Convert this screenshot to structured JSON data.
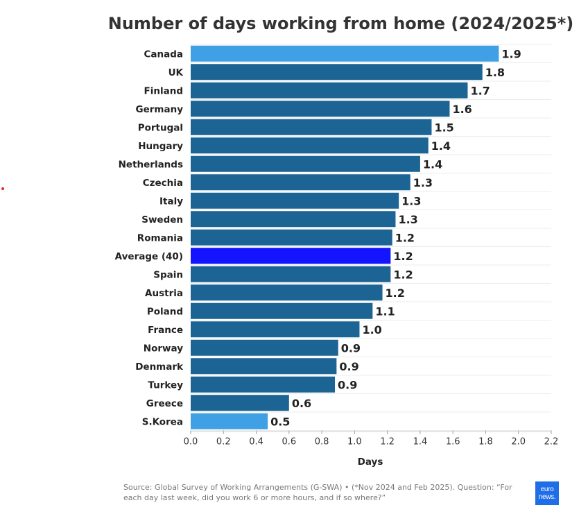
{
  "chart_data": {
    "type": "bar",
    "orientation": "horizontal",
    "title": "Number of days working from home (2024/2025*)",
    "xlabel": "Days",
    "ylabel": "",
    "xlim": [
      0,
      2.2
    ],
    "x_ticks": [
      "0.0",
      "0.2",
      "0.4",
      "0.6",
      "0.8",
      "1.0",
      "1.2",
      "1.4",
      "1.6",
      "1.8",
      "2.0",
      "2.2"
    ],
    "grid": true,
    "legend": "none",
    "categories": [
      "Canada",
      "UK",
      "Finland",
      "Germany",
      "Portugal",
      "Hungary",
      "Netherlands",
      "Czechia",
      "Italy",
      "Sweden",
      "Romania",
      "Average (40)",
      "Spain",
      "Austria",
      "Poland",
      "France",
      "Norway",
      "Denmark",
      "Turkey",
      "Greece",
      "S.Korea"
    ],
    "values": [
      1.88,
      1.78,
      1.69,
      1.58,
      1.47,
      1.45,
      1.4,
      1.34,
      1.27,
      1.25,
      1.23,
      1.22,
      1.22,
      1.17,
      1.11,
      1.03,
      0.9,
      0.89,
      0.88,
      0.6,
      0.47
    ],
    "value_labels": [
      "1.9",
      "1.8",
      "1.7",
      "1.6",
      "1.5",
      "1.4",
      "1.4",
      "1.3",
      "1.3",
      "1.3",
      "1.2",
      "1.2",
      "1.2",
      "1.2",
      "1.1",
      "1.0",
      "0.9",
      "0.9",
      "0.9",
      "0.6",
      "0.5"
    ],
    "bar_colors": [
      "#3fa0e6",
      "#1b6493",
      "#1b6493",
      "#1b6493",
      "#1b6493",
      "#1b6493",
      "#1b6493",
      "#1b6493",
      "#1b6493",
      "#1b6493",
      "#1b6493",
      "#1414ff",
      "#1b6493",
      "#1b6493",
      "#1b6493",
      "#1b6493",
      "#1b6493",
      "#1b6493",
      "#1b6493",
      "#1b6493",
      "#3fa0e6"
    ]
  },
  "source": "Source: Global Survey of Working Arrangements (G-SWA) • (*Nov 2024 and Feb 2025). Question: “For each day last week, did you work 6 or more hours, and if so where?”",
  "logo": {
    "line1": "euro",
    "line2": "news."
  }
}
